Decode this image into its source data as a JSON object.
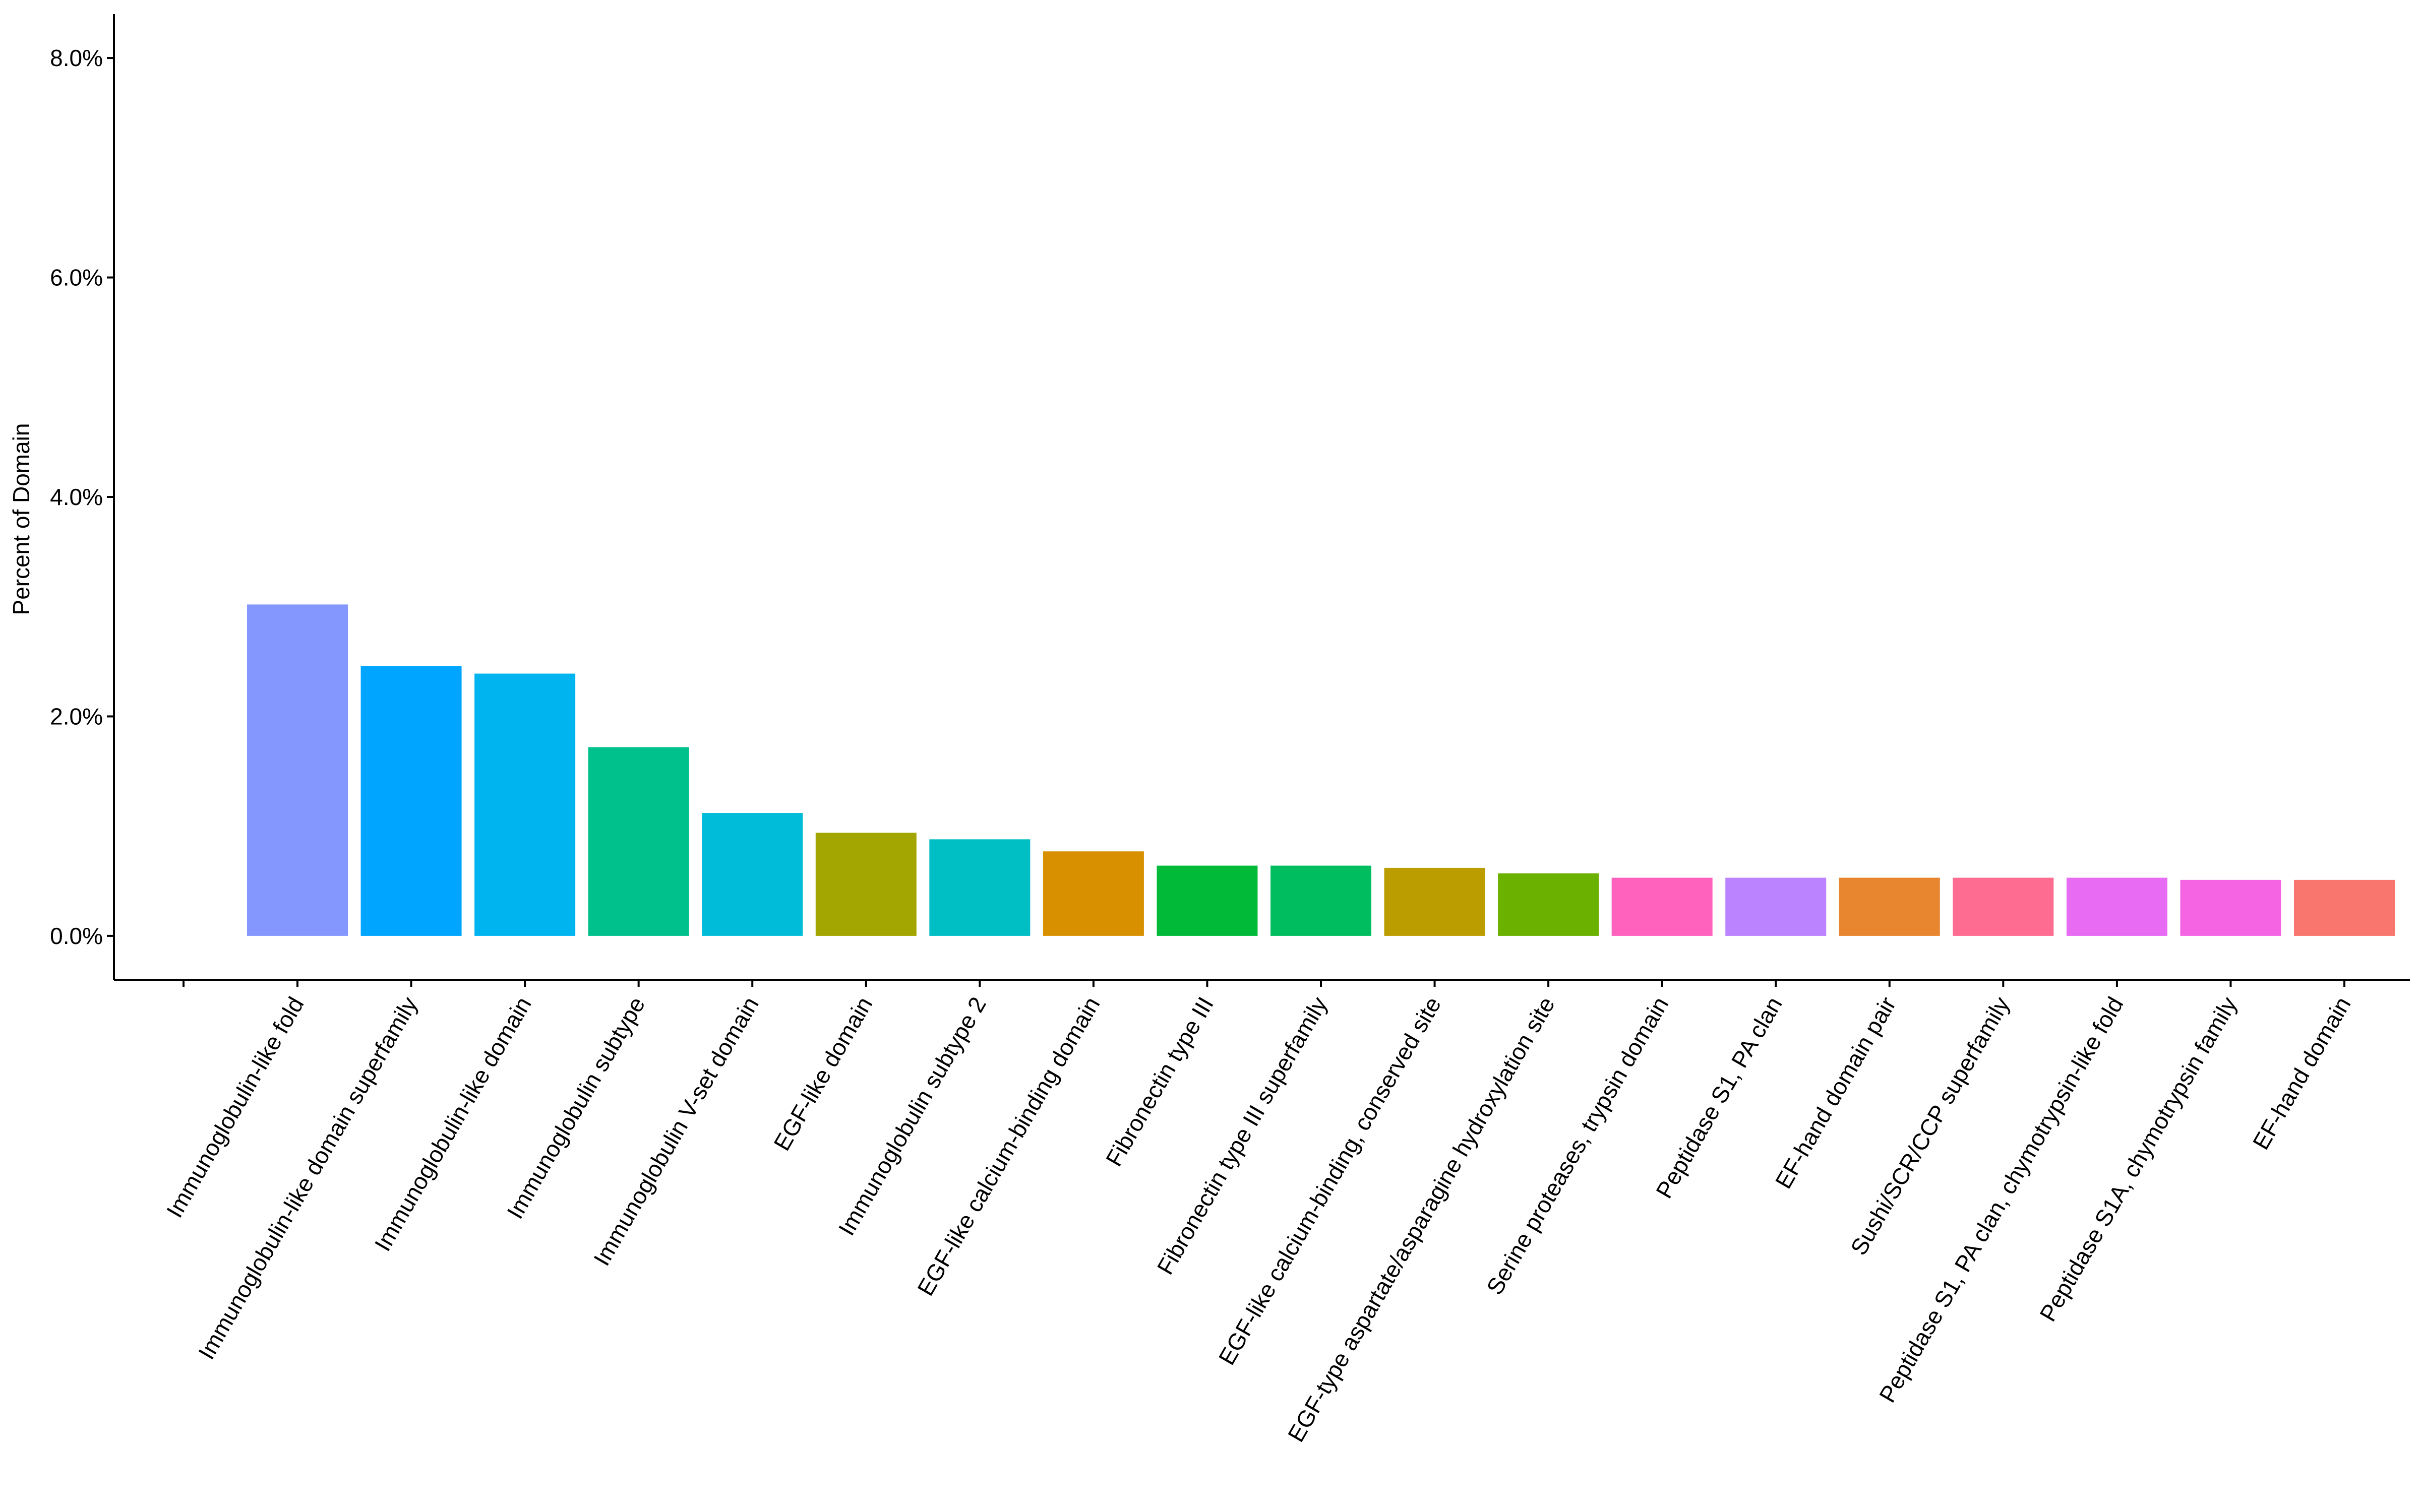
{
  "chart_data": {
    "type": "bar",
    "title": "",
    "xlabel": "",
    "ylabel": "Percent of Domain",
    "ylim": [
      -0.4,
      8.4
    ],
    "yticks": [
      0.0,
      2.0,
      4.0,
      6.0,
      8.0
    ],
    "ytick_labels": [
      "0.0%",
      "2.0%",
      "4.0%",
      "6.0%",
      "8.0%"
    ],
    "grid": false,
    "legend": "none",
    "categories": [
      "Immunoglobulin-like fold",
      "Immunoglobulin-like domain superfamily",
      "Immunoglobulin-like domain",
      "Immunoglobulin subtype",
      "Immunoglobulin V-set domain",
      "EGF-like domain",
      "Immunoglobulin subtype 2",
      "EGF-like calcium-binding domain",
      "Fibronectin type III",
      "Fibronectin type III superfamily",
      "EGF-like calcium-binding, conserved site",
      "EGF-type aspartate/asparagine hydroxylation site",
      "Serine proteases, trypsin domain",
      "Peptidase S1, PA clan",
      "EF-hand domain pair",
      "Sushi/SCR/CCP superfamily",
      "Peptidase S1, PA clan, chymotrypsin-like fold",
      "Peptidase S1A, chymotrypsin family",
      "EF-hand domain"
    ],
    "values": [
      3.02,
      2.46,
      2.39,
      1.72,
      1.12,
      0.94,
      0.88,
      0.77,
      0.64,
      0.64,
      0.62,
      0.57,
      0.53,
      0.53,
      0.53,
      0.53,
      0.53,
      0.51,
      0.51
    ],
    "colors": [
      "#8497FF",
      "#00A5FF",
      "#00B4EF",
      "#00C08B",
      "#00BCD8",
      "#A3A500",
      "#00BFC4",
      "#D89000",
      "#00BA38",
      "#00BD5F",
      "#BB9D00",
      "#6BB100",
      "#FF62BC",
      "#BB83FF",
      "#E8852F",
      "#FF6C91",
      "#E76BF3",
      "#F564E3",
      "#F8766D"
    ]
  }
}
